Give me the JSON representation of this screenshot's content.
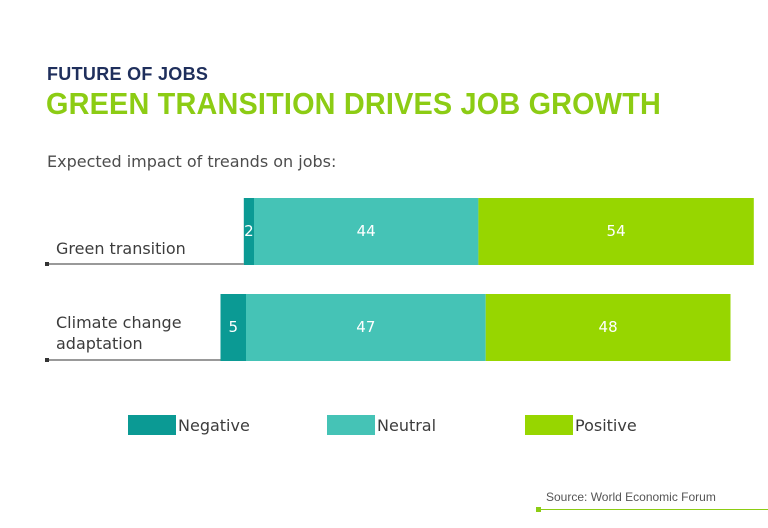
{
  "header": {
    "kicker": "FUTURE OF JOBS",
    "title": "GREEN TRANSITION DRIVES JOB GROWTH",
    "subtitle": "Expected impact of treands on jobs:"
  },
  "source": "Source: World Economic Forum",
  "colors": {
    "negative": "#0b9a94",
    "neutral": "#45c3b6",
    "positive": "#97d600",
    "kicker": "#1f2f5c",
    "title": "#8ccc14"
  },
  "legend": [
    {
      "label": "Negative",
      "color": "#0b9a94"
    },
    {
      "label": "Neutral",
      "color": "#45c3b6"
    },
    {
      "label": "Positive",
      "color": "#97d600"
    }
  ],
  "chart_data": {
    "type": "bar",
    "orientation": "horizontal",
    "stacked": true,
    "diverging": true,
    "categories": [
      [
        "Green transition"
      ],
      [
        "Climate change",
        "adaptation"
      ]
    ],
    "series": [
      {
        "name": "Negative",
        "values": [
          2,
          5
        ]
      },
      {
        "name": "Neutral",
        "values": [
          44,
          47
        ]
      },
      {
        "name": "Positive",
        "values": [
          54,
          48
        ]
      }
    ],
    "legend_position": "bottom",
    "grid": false
  }
}
